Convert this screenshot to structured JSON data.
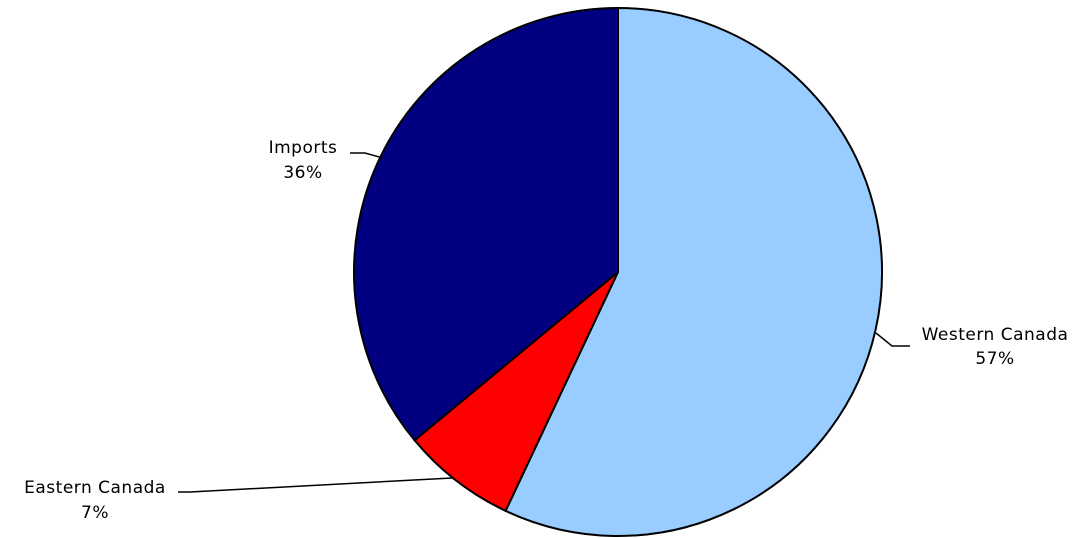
{
  "chart_data": {
    "type": "pie",
    "title": "",
    "slices": [
      {
        "label": "Western Canada",
        "value": 57,
        "display": "57%",
        "color": "#99CCFF"
      },
      {
        "label": "Eastern Canada",
        "value": 7,
        "display": "7%",
        "color": "#FF0000"
      },
      {
        "label": "Imports",
        "value": 36,
        "display": "36%",
        "color": "#000080"
      }
    ],
    "start_angle": "12 o'clock",
    "direction": "clockwise",
    "legend": "none",
    "labels": "outside with leader lines"
  }
}
